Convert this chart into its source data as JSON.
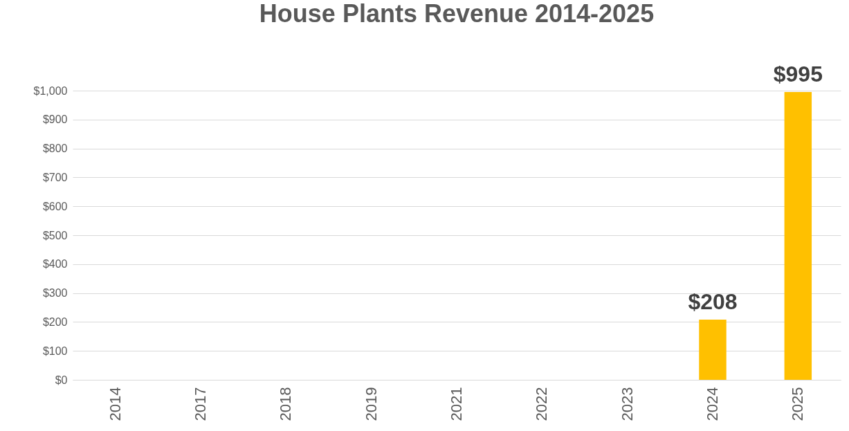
{
  "chart_data": {
    "type": "bar",
    "title": "House Plants Revenue 2014-2025",
    "categories": [
      "2014",
      "2017",
      "2018",
      "2019",
      "2021",
      "2022",
      "2023",
      "2024",
      "2025"
    ],
    "values": [
      0,
      0,
      0,
      0,
      0,
      0,
      0,
      208,
      995
    ],
    "value_labels": [
      null,
      null,
      null,
      null,
      null,
      null,
      null,
      "$208",
      "$995"
    ],
    "color": "#ffc000",
    "ylim": [
      0,
      1000
    ],
    "yticks": [
      {
        "value": 0,
        "label": "$0"
      },
      {
        "value": 100,
        "label": "$100"
      },
      {
        "value": 200,
        "label": "$200"
      },
      {
        "value": 300,
        "label": "$300"
      },
      {
        "value": 400,
        "label": "$400"
      },
      {
        "value": 500,
        "label": "$500"
      },
      {
        "value": 600,
        "label": "$600"
      },
      {
        "value": 700,
        "label": "$700"
      },
      {
        "value": 800,
        "label": "$800"
      },
      {
        "value": 900,
        "label": "$900"
      },
      {
        "value": 1000,
        "label": "$1,000"
      }
    ],
    "grid": "y"
  }
}
